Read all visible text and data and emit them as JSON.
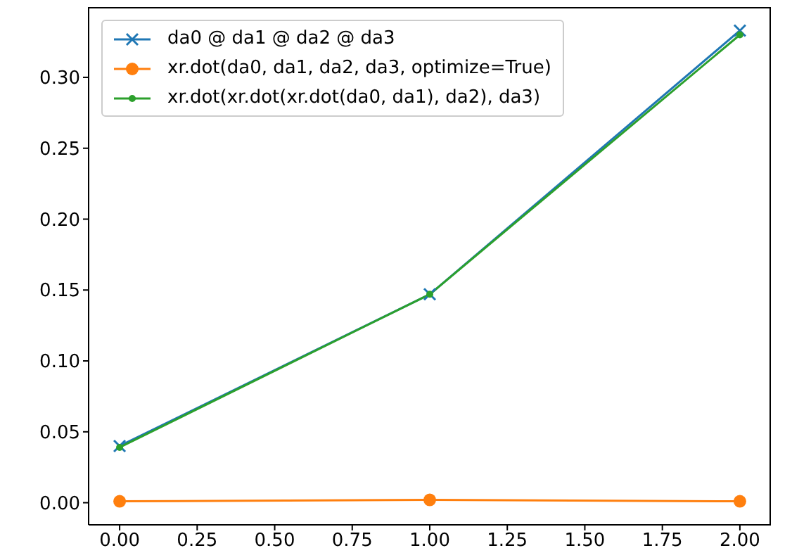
{
  "chart_data": {
    "type": "line",
    "x": [
      0,
      1,
      2
    ],
    "series": [
      {
        "name": "da0 @ da1 @ da2 @ da3",
        "color": "#1f77b4",
        "marker": "cross",
        "values": [
          0.04,
          0.147,
          0.333
        ]
      },
      {
        "name": "xr.dot(da0, da1, da2, da3, optimize=True)",
        "color": "#ff7f0e",
        "marker": "circle",
        "values": [
          0.001,
          0.002,
          0.001
        ]
      },
      {
        "name": "xr.dot(xr.dot(xr.dot(da0, da1), da2), da3)",
        "color": "#2ca02c",
        "marker": "circle",
        "values": [
          0.039,
          0.147,
          0.33
        ]
      }
    ],
    "xlim": [
      -0.1,
      2.1
    ],
    "xticks": [
      {
        "value": 0,
        "label": "0.00"
      },
      {
        "value": 0.25,
        "label": "0.25"
      },
      {
        "value": 0.5,
        "label": "0.50"
      },
      {
        "value": 0.75,
        "label": "0.75"
      },
      {
        "value": 1,
        "label": "1.00"
      },
      {
        "value": 1.25,
        "label": "1.25"
      },
      {
        "value": 1.5,
        "label": "1.50"
      },
      {
        "value": 1.75,
        "label": "1.75"
      },
      {
        "value": 2,
        "label": "2.00"
      }
    ],
    "ylim": [
      -0.0156,
      0.3496
    ],
    "yticks": [
      {
        "value": 0,
        "label": "0.00"
      },
      {
        "value": 0.05,
        "label": "0.05"
      },
      {
        "value": 0.1,
        "label": "0.10"
      },
      {
        "value": 0.15,
        "label": "0.15"
      },
      {
        "value": 0.2,
        "label": "0.20"
      },
      {
        "value": 0.25,
        "label": "0.25"
      },
      {
        "value": 0.3,
        "label": "0.30"
      }
    ],
    "legend": "top left",
    "grid": false,
    "line_style": "solid"
  }
}
